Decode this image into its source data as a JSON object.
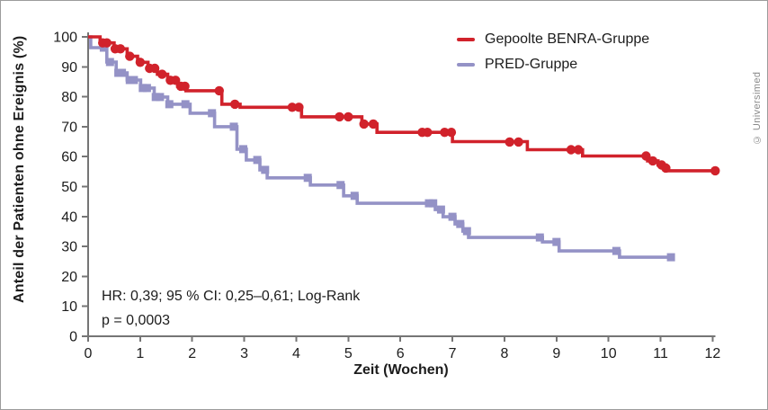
{
  "figure": {
    "credit": "© Universimed",
    "annotation_line1": "HR: 0,39; 95 % CI: 0,25–0,61; Log-Rank",
    "annotation_line2": "p = 0,0003"
  },
  "colors": {
    "benra_red": "#d1222b",
    "pred_purple": "#9492c6",
    "axis_gray": "#757575",
    "text_dark": "#1c1c1c",
    "credit_gray": "#8a8a8a"
  },
  "chart_data": {
    "type": "line",
    "subtype": "kaplan-meier-step",
    "title": "",
    "xlabel": "Zeit (Wochen)",
    "ylabel": "Anteil der Patienten ohne Ereignis (%)",
    "xlim": [
      0,
      12
    ],
    "ylim": [
      0,
      100
    ],
    "x_ticks": [
      0,
      1,
      2,
      3,
      4,
      5,
      6,
      7,
      8,
      9,
      10,
      11,
      12
    ],
    "y_ticks": [
      0,
      10,
      20,
      30,
      40,
      50,
      60,
      70,
      80,
      90,
      100
    ],
    "grid": false,
    "legend_position": "top-right",
    "series": [
      {
        "id": "benra",
        "name": "Gepoolte BENRA-Gruppe",
        "color": "#d1222b",
        "marker": "circle",
        "steps": [
          [
            0,
            100
          ],
          [
            0.23,
            98
          ],
          [
            0.5,
            96
          ],
          [
            0.75,
            93.5
          ],
          [
            0.95,
            91.5
          ],
          [
            1.15,
            89.5
          ],
          [
            1.33,
            87.5
          ],
          [
            1.53,
            85.5
          ],
          [
            1.72,
            83.5
          ],
          [
            1.88,
            82
          ],
          [
            2.57,
            77.5
          ],
          [
            2.92,
            76.5
          ],
          [
            4.1,
            73.3
          ],
          [
            5.26,
            70.9
          ],
          [
            5.55,
            68.1
          ],
          [
            7.0,
            65.0
          ],
          [
            8.44,
            62.3
          ],
          [
            9.5,
            60.2
          ],
          [
            10.75,
            58.6
          ],
          [
            10.95,
            57.2
          ],
          [
            11.1,
            55.3
          ],
          [
            12.06,
            55.3
          ]
        ],
        "censor_marks": [
          [
            0.28,
            98
          ],
          [
            0.36,
            98
          ],
          [
            0.52,
            96
          ],
          [
            0.62,
            96
          ],
          [
            0.8,
            93.5
          ],
          [
            1.0,
            91.5
          ],
          [
            1.18,
            89.5
          ],
          [
            1.28,
            89.5
          ],
          [
            1.42,
            87.5
          ],
          [
            1.58,
            85.5
          ],
          [
            1.68,
            85.5
          ],
          [
            1.78,
            83.5
          ],
          [
            1.86,
            83.5
          ],
          [
            2.52,
            82
          ],
          [
            2.82,
            77.5
          ],
          [
            3.92,
            76.5
          ],
          [
            4.05,
            76.5
          ],
          [
            4.83,
            73.3
          ],
          [
            5.0,
            73.3
          ],
          [
            5.3,
            70.9
          ],
          [
            5.48,
            70.9
          ],
          [
            6.42,
            68.1
          ],
          [
            6.52,
            68.1
          ],
          [
            6.85,
            68.1
          ],
          [
            6.98,
            68.1
          ],
          [
            8.1,
            64.9
          ],
          [
            8.27,
            64.9
          ],
          [
            9.28,
            62.3
          ],
          [
            9.42,
            62.3
          ],
          [
            10.72,
            60.2
          ],
          [
            10.85,
            58.6
          ],
          [
            11.02,
            57.2
          ],
          [
            11.1,
            56.2
          ],
          [
            12.05,
            55.3
          ]
        ]
      },
      {
        "id": "pred",
        "name": "PRED-Gruppe",
        "color": "#9492c6",
        "marker": "square",
        "steps": [
          [
            0,
            100
          ],
          [
            0.05,
            96.4
          ],
          [
            0.36,
            91.6
          ],
          [
            0.54,
            88
          ],
          [
            0.75,
            85.6
          ],
          [
            1.01,
            82.9
          ],
          [
            1.27,
            79.9
          ],
          [
            1.53,
            77.5
          ],
          [
            1.96,
            74.5
          ],
          [
            2.43,
            70
          ],
          [
            2.86,
            62.5
          ],
          [
            3.04,
            58.9
          ],
          [
            3.3,
            55.6
          ],
          [
            3.44,
            52.9
          ],
          [
            4.27,
            50.5
          ],
          [
            4.91,
            46.9
          ],
          [
            5.17,
            44.4
          ],
          [
            6.67,
            42.3
          ],
          [
            6.82,
            39.9
          ],
          [
            7.05,
            37.5
          ],
          [
            7.2,
            35.1
          ],
          [
            7.31,
            33
          ],
          [
            8.73,
            31.5
          ],
          [
            9.05,
            28.5
          ],
          [
            10.21,
            26.4
          ],
          [
            11.2,
            26.4
          ]
        ],
        "censor_marks": [
          [
            0.3,
            96.4
          ],
          [
            0.42,
            91.6
          ],
          [
            0.58,
            88
          ],
          [
            0.65,
            88
          ],
          [
            0.8,
            85.6
          ],
          [
            0.88,
            85.6
          ],
          [
            1.05,
            82.9
          ],
          [
            1.13,
            82.9
          ],
          [
            1.3,
            79.9
          ],
          [
            1.38,
            79.9
          ],
          [
            1.56,
            77.5
          ],
          [
            1.87,
            77.5
          ],
          [
            2.38,
            74.5
          ],
          [
            2.8,
            70
          ],
          [
            2.98,
            62.5
          ],
          [
            3.25,
            58.9
          ],
          [
            3.4,
            55.6
          ],
          [
            4.22,
            52.9
          ],
          [
            4.85,
            50.5
          ],
          [
            5.12,
            46.9
          ],
          [
            6.55,
            44.4
          ],
          [
            6.63,
            44.4
          ],
          [
            6.78,
            42.3
          ],
          [
            7.0,
            39.9
          ],
          [
            7.15,
            37.5
          ],
          [
            7.28,
            35.1
          ],
          [
            8.68,
            33
          ],
          [
            9.0,
            31.5
          ],
          [
            10.15,
            28.5
          ],
          [
            11.2,
            26.4
          ]
        ]
      }
    ]
  }
}
